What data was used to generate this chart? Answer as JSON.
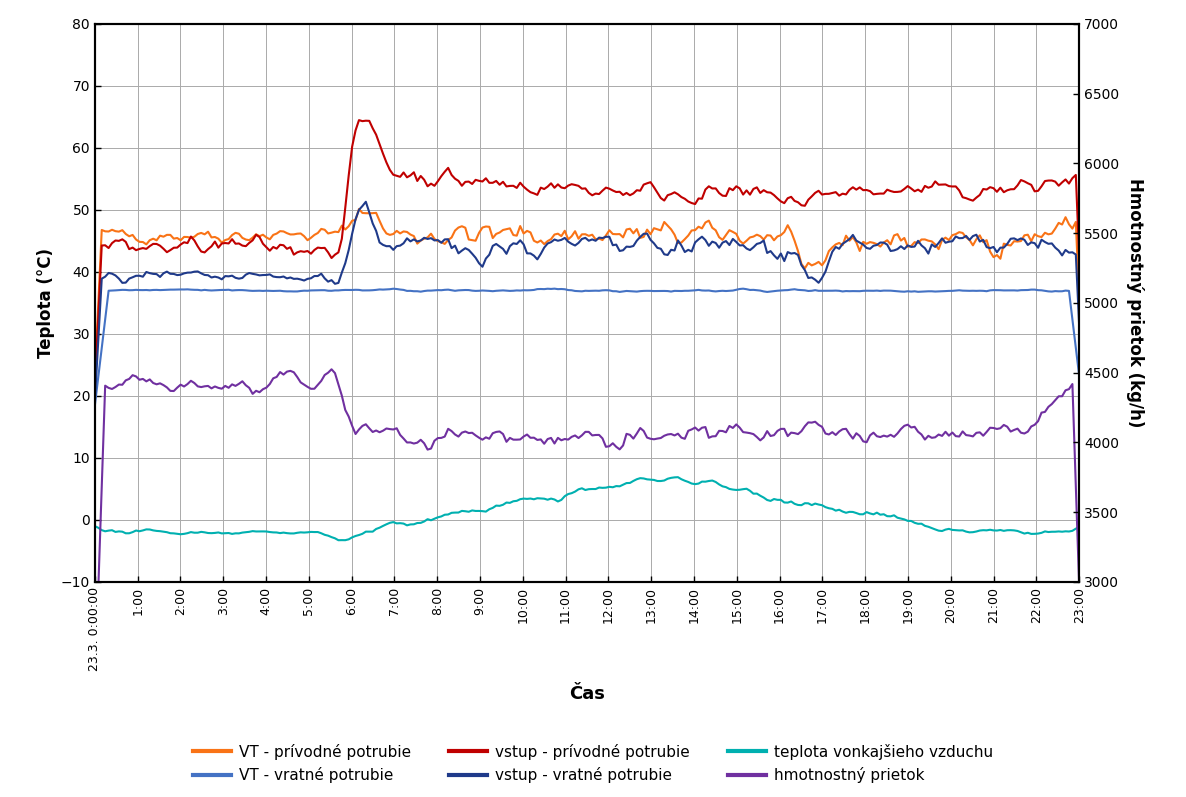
{
  "title": "",
  "xlabel": "Čas",
  "ylabel_left": "Teplota (°C)",
  "ylabel_right": "Hmotnostný prietok (kg/h)",
  "ylim_left": [
    -10,
    80
  ],
  "ylim_right": [
    3000,
    7000
  ],
  "yticks_left": [
    -10,
    0,
    10,
    20,
    30,
    40,
    50,
    60,
    70,
    80
  ],
  "yticks_right": [
    3000,
    3500,
    4000,
    4500,
    5000,
    5500,
    6000,
    6500,
    7000
  ],
  "n_points": 288,
  "colors": {
    "VT_privod": "#F97316",
    "VT_vratne": "#4472C4",
    "vstup_privod": "#C00000",
    "vstup_vratne": "#1F3A8A",
    "teplota_vonk": "#00B0B0",
    "hmotnostny": "#7030A0"
  },
  "legend_labels": [
    "VT - prívodné potrubie",
    "VT - vratné potrubie",
    "vstup - prívodné potrubie",
    "vstup - vratné potrubie",
    "teplota vonkajšieho vzduchu",
    "hmotnostný prietok"
  ],
  "x_tick_labels": [
    "23.3. 0:00:00",
    "1:00",
    "2:00",
    "3:00",
    "4:00",
    "5:00",
    "6:00",
    "7:00",
    "8:00",
    "9:00",
    "10:00",
    "11:00",
    "12:00",
    "13:00",
    "14:00",
    "15:00",
    "16:00",
    "17:00",
    "18:00",
    "19:00",
    "20:00",
    "21:00",
    "22:00",
    "23:00"
  ],
  "background_color": "#FFFFFF",
  "grid_color": "#AAAAAA"
}
